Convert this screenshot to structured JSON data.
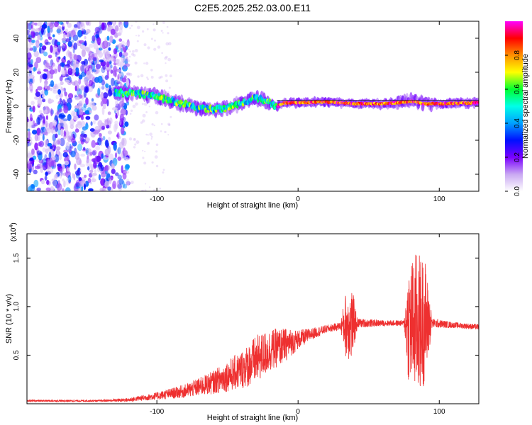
{
  "title": "C2E5.2025.252.03.00.E11",
  "chart_data": [
    {
      "type": "heatmap",
      "name": "spectrogram",
      "xlabel": "Height of straight line (km)",
      "ylabel": "Frequency (Hz)",
      "xlim": [
        -192,
        128
      ],
      "ylim": [
        -50,
        50
      ],
      "xticks": [
        -100,
        0,
        100
      ],
      "yticks": [
        -40,
        -20,
        0,
        20,
        40
      ],
      "colorbar": {
        "label": "Normalized spectral amplitude",
        "range": [
          0,
          1
        ],
        "ticks": [
          "0.0",
          "0.2",
          "0.4",
          "0.6",
          "0.8"
        ],
        "colors": [
          "#ffffff",
          "#c9a8f2",
          "#7a00ff",
          "#0010ff",
          "#00a0ff",
          "#00ffe8",
          "#00ff30",
          "#ffff00",
          "#ff9000",
          "#ff0000",
          "#ff00ff"
        ]
      },
      "noise_region_x": [
        -192,
        -120
      ],
      "signal_track": [
        {
          "x": -130,
          "f": 8
        },
        {
          "x": -115,
          "f": 7.5
        },
        {
          "x": -100,
          "f": 6
        },
        {
          "x": -90,
          "f": 3
        },
        {
          "x": -80,
          "f": 1
        },
        {
          "x": -70,
          "f": -1
        },
        {
          "x": -60,
          "f": -2
        },
        {
          "x": -50,
          "f": -1
        },
        {
          "x": -40,
          "f": 2
        },
        {
          "x": -30,
          "f": 5
        },
        {
          "x": -20,
          "f": 2
        },
        {
          "x": -15,
          "f": 0
        },
        {
          "x": -10,
          "f": 2
        },
        {
          "x": 0,
          "f": 2
        },
        {
          "x": 20,
          "f": 2.5
        },
        {
          "x": 40,
          "f": 1.5
        },
        {
          "x": 60,
          "f": 1.5
        },
        {
          "x": 70,
          "f": 2
        },
        {
          "x": 80,
          "f": 3
        },
        {
          "x": 90,
          "f": 1.5
        },
        {
          "x": 100,
          "f": 1.5
        },
        {
          "x": 128,
          "f": 2
        }
      ]
    },
    {
      "type": "line",
      "name": "snr",
      "xlabel": "Height of straight line (km)",
      "ylabel": "SNR (10 * v/v)",
      "multiplier": "(x10",
      "multiplier_exp": "4",
      "multiplier_close": ")",
      "xlim": [
        -192,
        128
      ],
      "ylim": [
        0,
        1.75
      ],
      "xticks": [
        -100,
        0,
        100
      ],
      "yticks": [
        0.5,
        1.0,
        1.5
      ],
      "ytick_labels": [
        "0.5",
        "1.0",
        "1.5"
      ],
      "color": "#ee3030",
      "envelope": [
        {
          "x": -192,
          "mean": 0.03,
          "spread": 0.01
        },
        {
          "x": -140,
          "mean": 0.03,
          "spread": 0.01
        },
        {
          "x": -120,
          "mean": 0.04,
          "spread": 0.02
        },
        {
          "x": -110,
          "mean": 0.06,
          "spread": 0.03
        },
        {
          "x": -100,
          "mean": 0.08,
          "spread": 0.04
        },
        {
          "x": -80,
          "mean": 0.13,
          "spread": 0.07
        },
        {
          "x": -60,
          "mean": 0.22,
          "spread": 0.12
        },
        {
          "x": -40,
          "mean": 0.35,
          "spread": 0.2
        },
        {
          "x": -30,
          "mean": 0.45,
          "spread": 0.25
        },
        {
          "x": -20,
          "mean": 0.55,
          "spread": 0.22
        },
        {
          "x": -10,
          "mean": 0.6,
          "spread": 0.18
        },
        {
          "x": 0,
          "mean": 0.66,
          "spread": 0.1
        },
        {
          "x": 10,
          "mean": 0.72,
          "spread": 0.06
        },
        {
          "x": 20,
          "mean": 0.77,
          "spread": 0.04
        },
        {
          "x": 30,
          "mean": 0.8,
          "spread": 0.04
        },
        {
          "x": 34,
          "mean": 0.82,
          "spread": 0.35
        },
        {
          "x": 38,
          "mean": 0.82,
          "spread": 0.4
        },
        {
          "x": 42,
          "mean": 0.83,
          "spread": 0.05
        },
        {
          "x": 60,
          "mean": 0.83,
          "spread": 0.03
        },
        {
          "x": 75,
          "mean": 0.83,
          "spread": 0.03
        },
        {
          "x": 78,
          "mean": 0.83,
          "spread": 0.6
        },
        {
          "x": 84,
          "mean": 0.83,
          "spread": 0.75
        },
        {
          "x": 90,
          "mean": 0.85,
          "spread": 0.65
        },
        {
          "x": 95,
          "mean": 0.83,
          "spread": 0.05
        },
        {
          "x": 110,
          "mean": 0.81,
          "spread": 0.03
        },
        {
          "x": 128,
          "mean": 0.79,
          "spread": 0.03
        }
      ]
    }
  ]
}
